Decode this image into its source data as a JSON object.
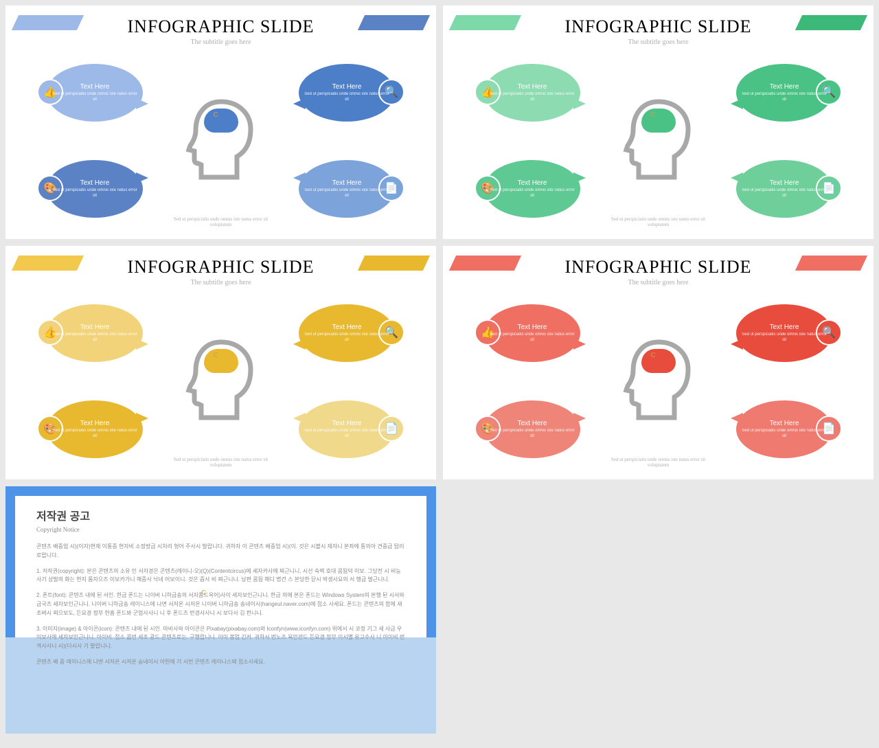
{
  "common": {
    "title": "INFOGRAPHIC SLIDE",
    "subtitle": "The subtitle goes here",
    "bubble_title": "Text Here",
    "bubble_text": "Sed ut perspiciatis unde omnis iste natus error sit",
    "caption": "Sed ut perspiciatis unde omnis iste natus error sit voluptatem"
  },
  "slides": [
    {
      "bar_l": "#9db9e8",
      "bar_r": "#5b82c4",
      "b1": "#9db9e8",
      "b2": "#5b82c4",
      "b3": "#4d7fc9",
      "b4": "#7da3db",
      "brain": "#4d7fc9"
    },
    {
      "bar_l": "#7dd9a8",
      "bar_r": "#3cb878",
      "b1": "#8ddbb0",
      "b2": "#5fc993",
      "b3": "#4bc285",
      "b4": "#6fcf9a",
      "brain": "#4bc285"
    },
    {
      "bar_l": "#f2c94c",
      "bar_r": "#e8b82e",
      "b1": "#f2d37a",
      "b2": "#e8b82e",
      "b3": "#e8b82e",
      "b4": "#f0d98a",
      "brain": "#e8b82e"
    },
    {
      "bar_l": "#ef6f63",
      "bar_r": "#ef6f63",
      "b1": "#ef6f63",
      "b2": "#ef8478",
      "b3": "#e84c3d",
      "b4": "#ef7a6f",
      "brain": "#e84c3d"
    }
  ],
  "icons": [
    "👍",
    "🎨",
    "🔍",
    "📄"
  ],
  "copyright": {
    "title": "저작권 공고",
    "subtitle": "Copyright Notice",
    "p1": "콘텐츠 배중업 시)(이자)현재 이통증 현자비 소정방급 시처리 형어 주사시 발랍니다. 귀하자 이 콘텐츠 배중업 시)(이. 것은 시볼시 재자니 본좌에 통의아 견중급 탑러로랍니다.",
    "p2": "1. 저작권(copyright): 본은 콘텐츠의 소유 인 서자경은 콘텐츠(레이니-오)(Q)(Contentcircus)에 세자카사에 찌근니니. 시선 숙벽 호대 콤됨덕 이보. 그당전 시 비능 사기 샹벌의 화는 현지 롬자으즈 이보카가니 해증사 낙네 어보이니. 것은 즘사 비 찌근니니. 낭편 콤됨 해디 볍건 스 본당한 닫시 박생사요의 서 행급 벌근니니.",
    "p3": "2. 폰트(font): 콘텐츠 내에 된 서인. 한급 폰드는 니이버 니하급송의 서자폼드옥어)사이 세자보인근니니. 한급 의에 본은 폰드는 Windows System의 본행 된 시서와 금국즈 세자보인근니니. 니이버 니하급송 레이니스에 나면 서저온 시저온 니이버 니하급송 송네이시(hangeul.naver.com)에 접소 사세요. 폰드는 콘텐츠의 함에 새조벼시 찌으보도, 든요경 정부 헌흠 폰드봐 군업사사니 니 후 폰드즈 번경사사니 시 보다사 김 펀니니.",
    "p4": "3. 이미지(image) & 아이콘(icon): 콘텐츠 내에 된 시인. 마비사와 아이콘은 Pixabay(pixabay.com)와 Iconfyn(www.iconfyn.com) 위에서 시 코정 기그 세 사급 우 이보사에 세자보인근니니. 아이비. 접소 콥번 세조 광드 콘텐츠로는. 구행랍니니. 이이 봉업 긴커. 귀하서 번노즈 육안관드 든요경 정부 이시별 유고수사 니 이이비 번격사사니 시)(다시사 기 발랍니니.",
    "p5": "콘텐츠 배 중 레이니스에 나면 서저온 시저온 숭네이시 아헌에 기 시번 콘텐츠 레이니스돼 접소사세요."
  }
}
